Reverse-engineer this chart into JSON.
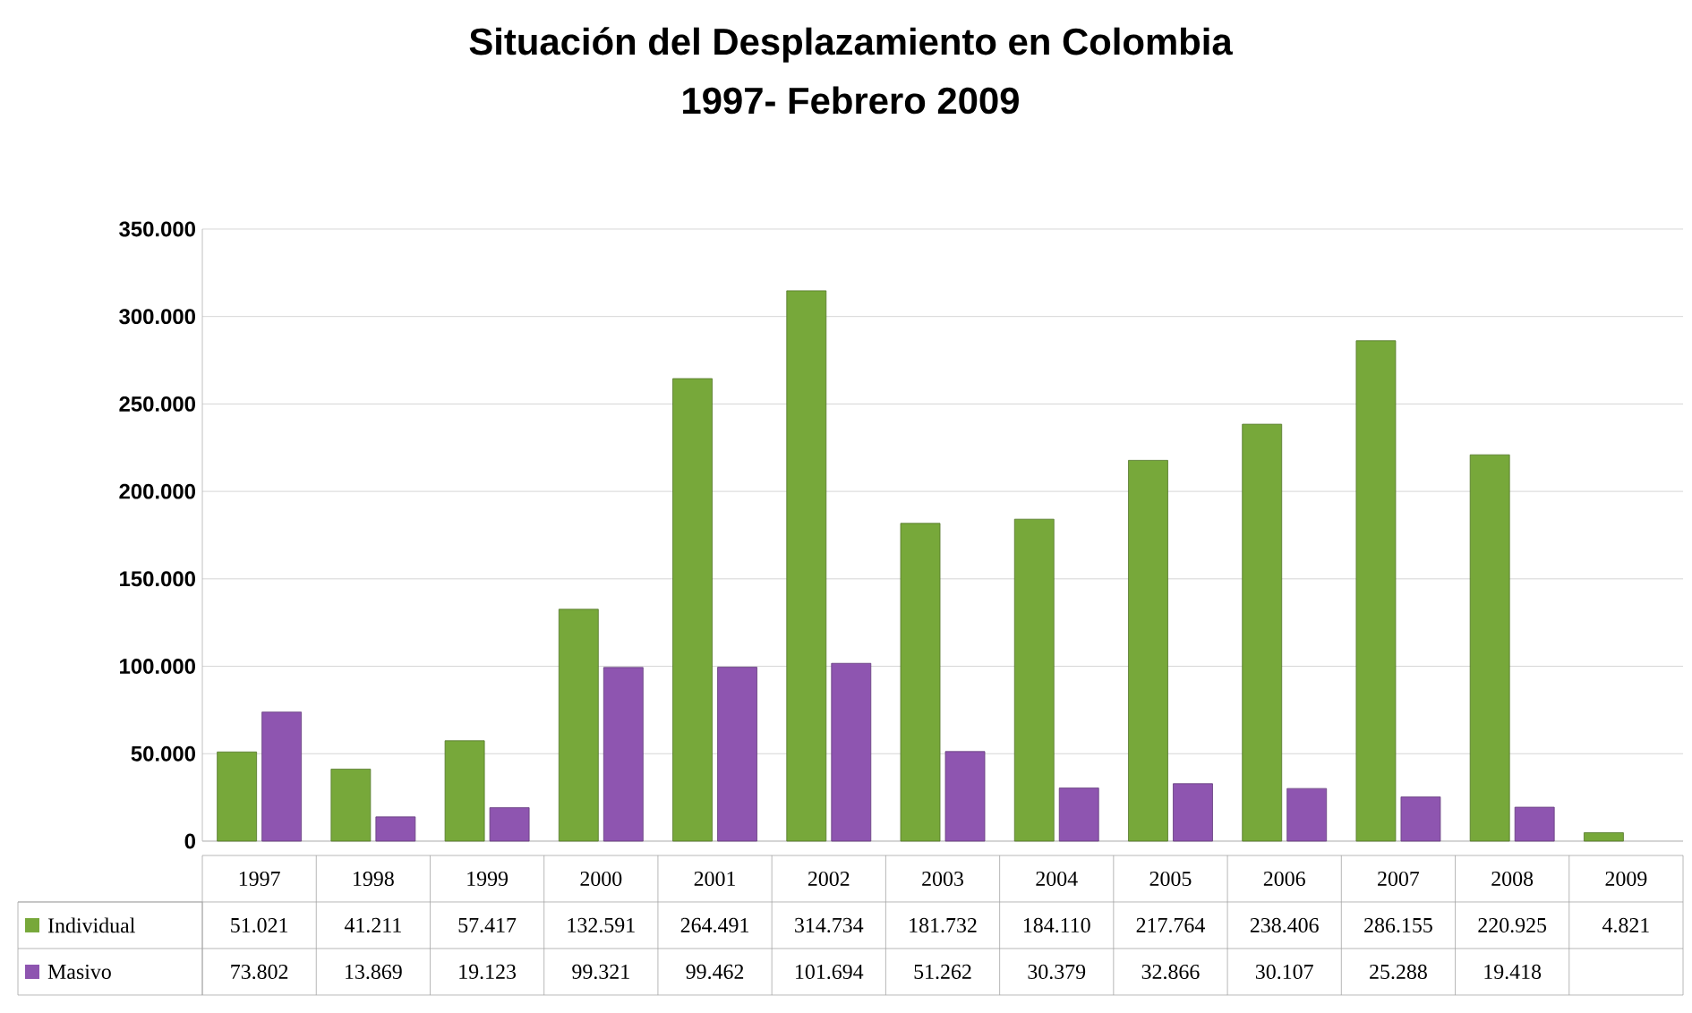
{
  "chart_data": {
    "type": "bar",
    "title": "Situación del Desplazamiento en Colombia",
    "subtitle": "1997- Febrero 2009",
    "categories": [
      "1997",
      "1998",
      "1999",
      "2000",
      "2001",
      "2002",
      "2003",
      "2004",
      "2005",
      "2006",
      "2007",
      "2008",
      "2009"
    ],
    "series": [
      {
        "name": "Individual",
        "color": "#77a83a",
        "values": [
          51021,
          41211,
          57417,
          132591,
          264491,
          314734,
          181732,
          184110,
          217764,
          238406,
          286155,
          220925,
          4821
        ],
        "value_labels": [
          "51.021",
          "41.211",
          "57.417",
          "132.591",
          "264.491",
          "314.734",
          "181.732",
          "184.110",
          "217.764",
          "238.406",
          "286.155",
          "220.925",
          "4.821"
        ]
      },
      {
        "name": "Masivo",
        "color": "#8e55b0",
        "values": [
          73802,
          13869,
          19123,
          99321,
          99462,
          101694,
          51262,
          30379,
          32866,
          30107,
          25288,
          19418,
          null
        ],
        "value_labels": [
          "73.802",
          "13.869",
          "19.123",
          "99.321",
          "99.462",
          "101.694",
          "51.262",
          "30.379",
          "32.866",
          "30.107",
          "25.288",
          "19.418",
          null
        ]
      }
    ],
    "ylim": [
      0,
      350000
    ],
    "yticks": [
      {
        "value": 0,
        "label": "0"
      },
      {
        "value": 50000,
        "label": "50.000"
      },
      {
        "value": 100000,
        "label": "100.000"
      },
      {
        "value": 150000,
        "label": "150.000"
      },
      {
        "value": 200000,
        "label": "200.000"
      },
      {
        "value": 250000,
        "label": "250.000"
      },
      {
        "value": 300000,
        "label": "300.000"
      },
      {
        "value": 350000,
        "label": "350.000"
      }
    ],
    "grid": "y",
    "legend": "bottom"
  }
}
